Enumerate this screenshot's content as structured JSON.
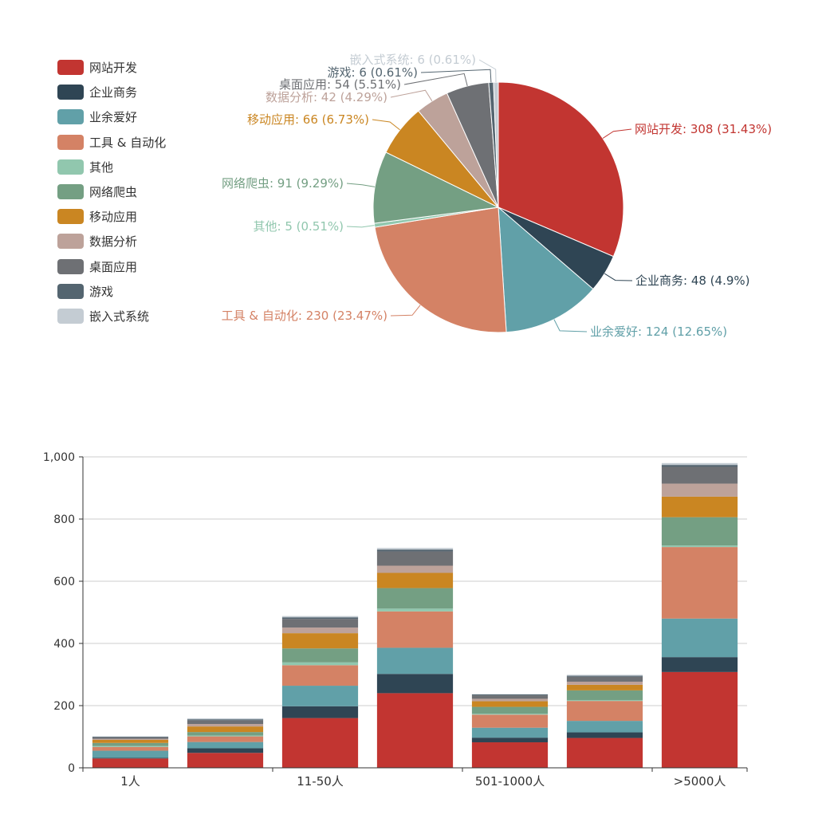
{
  "chart_data": [
    {
      "type": "pie",
      "legend_position": "top-left",
      "slices": [
        {
          "name": "网站开发",
          "value": 308,
          "label": "网站开发: 308 (31.43%)",
          "color": "#c23531"
        },
        {
          "name": "企业商务",
          "value": 48,
          "label": "企业商务: 48 (4.9%)",
          "color": "#2f4554"
        },
        {
          "name": "业余爱好",
          "value": 124,
          "label": "业余爱好: 124 (12.65%)",
          "color": "#61a0a8"
        },
        {
          "name": "工具 & 自动化",
          "value": 230,
          "label": "工具 & 自动化: 230 (23.47%)",
          "color": "#d48265"
        },
        {
          "name": "其他",
          "value": 5,
          "label": "其他: 5 (0.51%)",
          "color": "#91c7ae"
        },
        {
          "name": "网络爬虫",
          "value": 91,
          "label": "网络爬虫: 91 (9.29%)",
          "color": "#749f83"
        },
        {
          "name": "移动应用",
          "value": 66,
          "label": "移动应用: 66 (6.73%)",
          "color": "#ca8622"
        },
        {
          "name": "数据分析",
          "value": 42,
          "label": "数据分析: 42 (4.29%)",
          "color": "#bda29a"
        },
        {
          "name": "桌面应用",
          "value": 54,
          "label": "桌面应用: 54 (5.51%)",
          "color": "#6e7074"
        },
        {
          "name": "游戏",
          "value": 6,
          "label": "游戏: 6 (0.61%)",
          "color": "#546570"
        },
        {
          "name": "嵌入式系统",
          "value": 6,
          "label": "嵌入式系统: 6 (0.61%)",
          "color": "#c4ccd3"
        }
      ]
    },
    {
      "type": "bar",
      "stacked": true,
      "grid": true,
      "ylim": [
        0,
        1000
      ],
      "yticks": [
        0,
        200,
        400,
        600,
        800,
        1000
      ],
      "ytick_labels": [
        "0",
        "200",
        "400",
        "600",
        "800",
        "1,000"
      ],
      "categories": [
        "1人",
        "",
        "11-50人",
        "",
        "501-1000人",
        "",
        ">5000人"
      ],
      "series": [
        {
          "name": "网站开发",
          "values": [
            30,
            48,
            160,
            240,
            82,
            96,
            308
          ]
        },
        {
          "name": "企业商务",
          "values": [
            2,
            15,
            38,
            62,
            15,
            18,
            48
          ]
        },
        {
          "name": "业余爱好",
          "values": [
            23,
            20,
            66,
            84,
            32,
            37,
            124
          ]
        },
        {
          "name": "工具 & 自动化",
          "values": [
            12,
            18,
            66,
            117,
            42,
            64,
            230
          ]
        },
        {
          "name": "其他",
          "values": [
            3,
            3,
            9,
            9,
            3,
            3,
            5
          ]
        },
        {
          "name": "网络爬虫",
          "values": [
            10,
            11,
            45,
            66,
            22,
            31,
            91
          ]
        },
        {
          "name": "移动应用",
          "values": [
            10,
            18,
            49,
            49,
            18,
            18,
            66
          ]
        },
        {
          "name": "数据分析",
          "values": [
            3,
            8,
            18,
            23,
            8,
            10,
            42
          ]
        },
        {
          "name": "桌面应用",
          "values": [
            5,
            12,
            28,
            46,
            11,
            16,
            54
          ]
        },
        {
          "name": "游戏",
          "values": [
            2,
            3,
            5,
            6,
            3,
            3,
            6
          ]
        },
        {
          "name": "嵌入式系统",
          "values": [
            1,
            3,
            4,
            5,
            1,
            3,
            6
          ]
        }
      ]
    }
  ]
}
